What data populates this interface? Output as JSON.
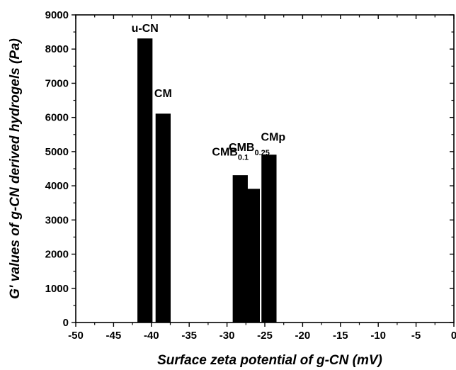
{
  "chart_data": {
    "type": "bar",
    "title": "",
    "xlabel": "Surface zeta potential of g-CN (mV)",
    "ylabel": "G' values of g-CN derived hydrogels (Pa)",
    "xlim": [
      -50,
      0
    ],
    "ylim": [
      0,
      9000
    ],
    "x_ticks": [
      "-50",
      "-45",
      "-40",
      "-35",
      "-30",
      "-25",
      "-20",
      "-15",
      "-10",
      "-5",
      "0"
    ],
    "y_ticks": [
      "0",
      "1000",
      "2000",
      "3000",
      "4000",
      "5000",
      "6000",
      "7000",
      "8000",
      "9000"
    ],
    "grid": false,
    "legend": "none",
    "bar_color": "#000000",
    "bars": [
      {
        "label": "u-CN",
        "label_main": "u-CN",
        "label_sub": "",
        "x_start": -41.8,
        "x_end": -39.9,
        "value": 8300
      },
      {
        "label": "CM",
        "label_main": "CM",
        "label_sub": "",
        "x_start": -39.4,
        "x_end": -37.5,
        "value": 6100
      },
      {
        "label": "CMB0.1",
        "label_main": "CMB",
        "label_sub": "0.1",
        "x_start": -29.2,
        "x_end": -27.3,
        "value": 4300
      },
      {
        "label": "CMB0.25",
        "label_main": "CMB",
        "label_sub": "0.25",
        "x_start": -27.3,
        "x_end": -25.7,
        "value": 3900
      },
      {
        "label": "CMp",
        "label_main": "CMp",
        "label_sub": "",
        "x_start": -25.4,
        "x_end": -23.5,
        "value": 4900
      }
    ]
  }
}
